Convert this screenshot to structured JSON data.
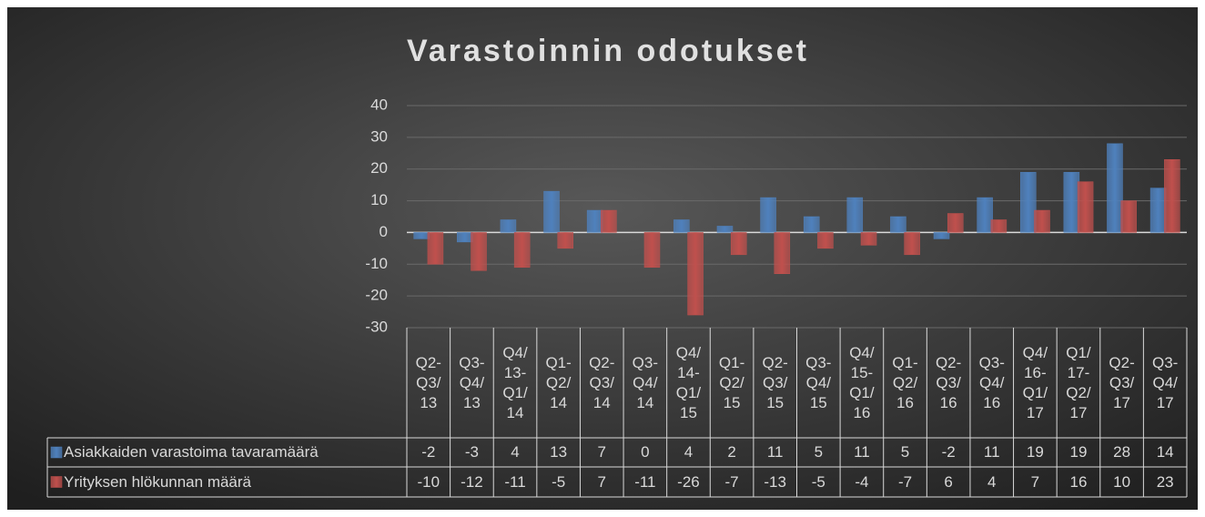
{
  "chart_data": {
    "type": "bar",
    "title": "Varastoinnin odotukset",
    "categories": [
      "Q2-Q3/13",
      "Q3-Q4/13",
      "Q4/13-Q1/14",
      "Q1-Q2/14",
      "Q2-Q3/14",
      "Q3-Q4/14",
      "Q4/14-Q1/15",
      "Q1-Q2/15",
      "Q2-Q3/15",
      "Q3-Q4/15",
      "Q4/15-Q1/16",
      "Q1-Q2/16",
      "Q2-Q3/16",
      "Q3-Q4/16",
      "Q4/16-Q1/17",
      "Q1/17-Q2/17",
      "Q2-Q3/17",
      "Q3-Q4/17"
    ],
    "series": [
      {
        "name": "Asiakkaiden varastoima tavaramäärä",
        "color": "#4f81bd",
        "values": [
          -2,
          -3,
          4,
          13,
          7,
          0,
          4,
          2,
          11,
          5,
          11,
          5,
          -2,
          11,
          19,
          19,
          28,
          14
        ]
      },
      {
        "name": "Yrityksen hlökunnan määrä",
        "color": "#c0504d",
        "values": [
          -10,
          -12,
          -11,
          -5,
          7,
          -11,
          -26,
          -7,
          -13,
          -5,
          -4,
          -7,
          6,
          4,
          7,
          16,
          10,
          23
        ]
      }
    ],
    "ylim": [
      -30,
      40
    ],
    "yticks": [
      -30,
      -20,
      -10,
      0,
      10,
      20,
      30,
      40
    ],
    "grid": true,
    "data_table": true
  }
}
